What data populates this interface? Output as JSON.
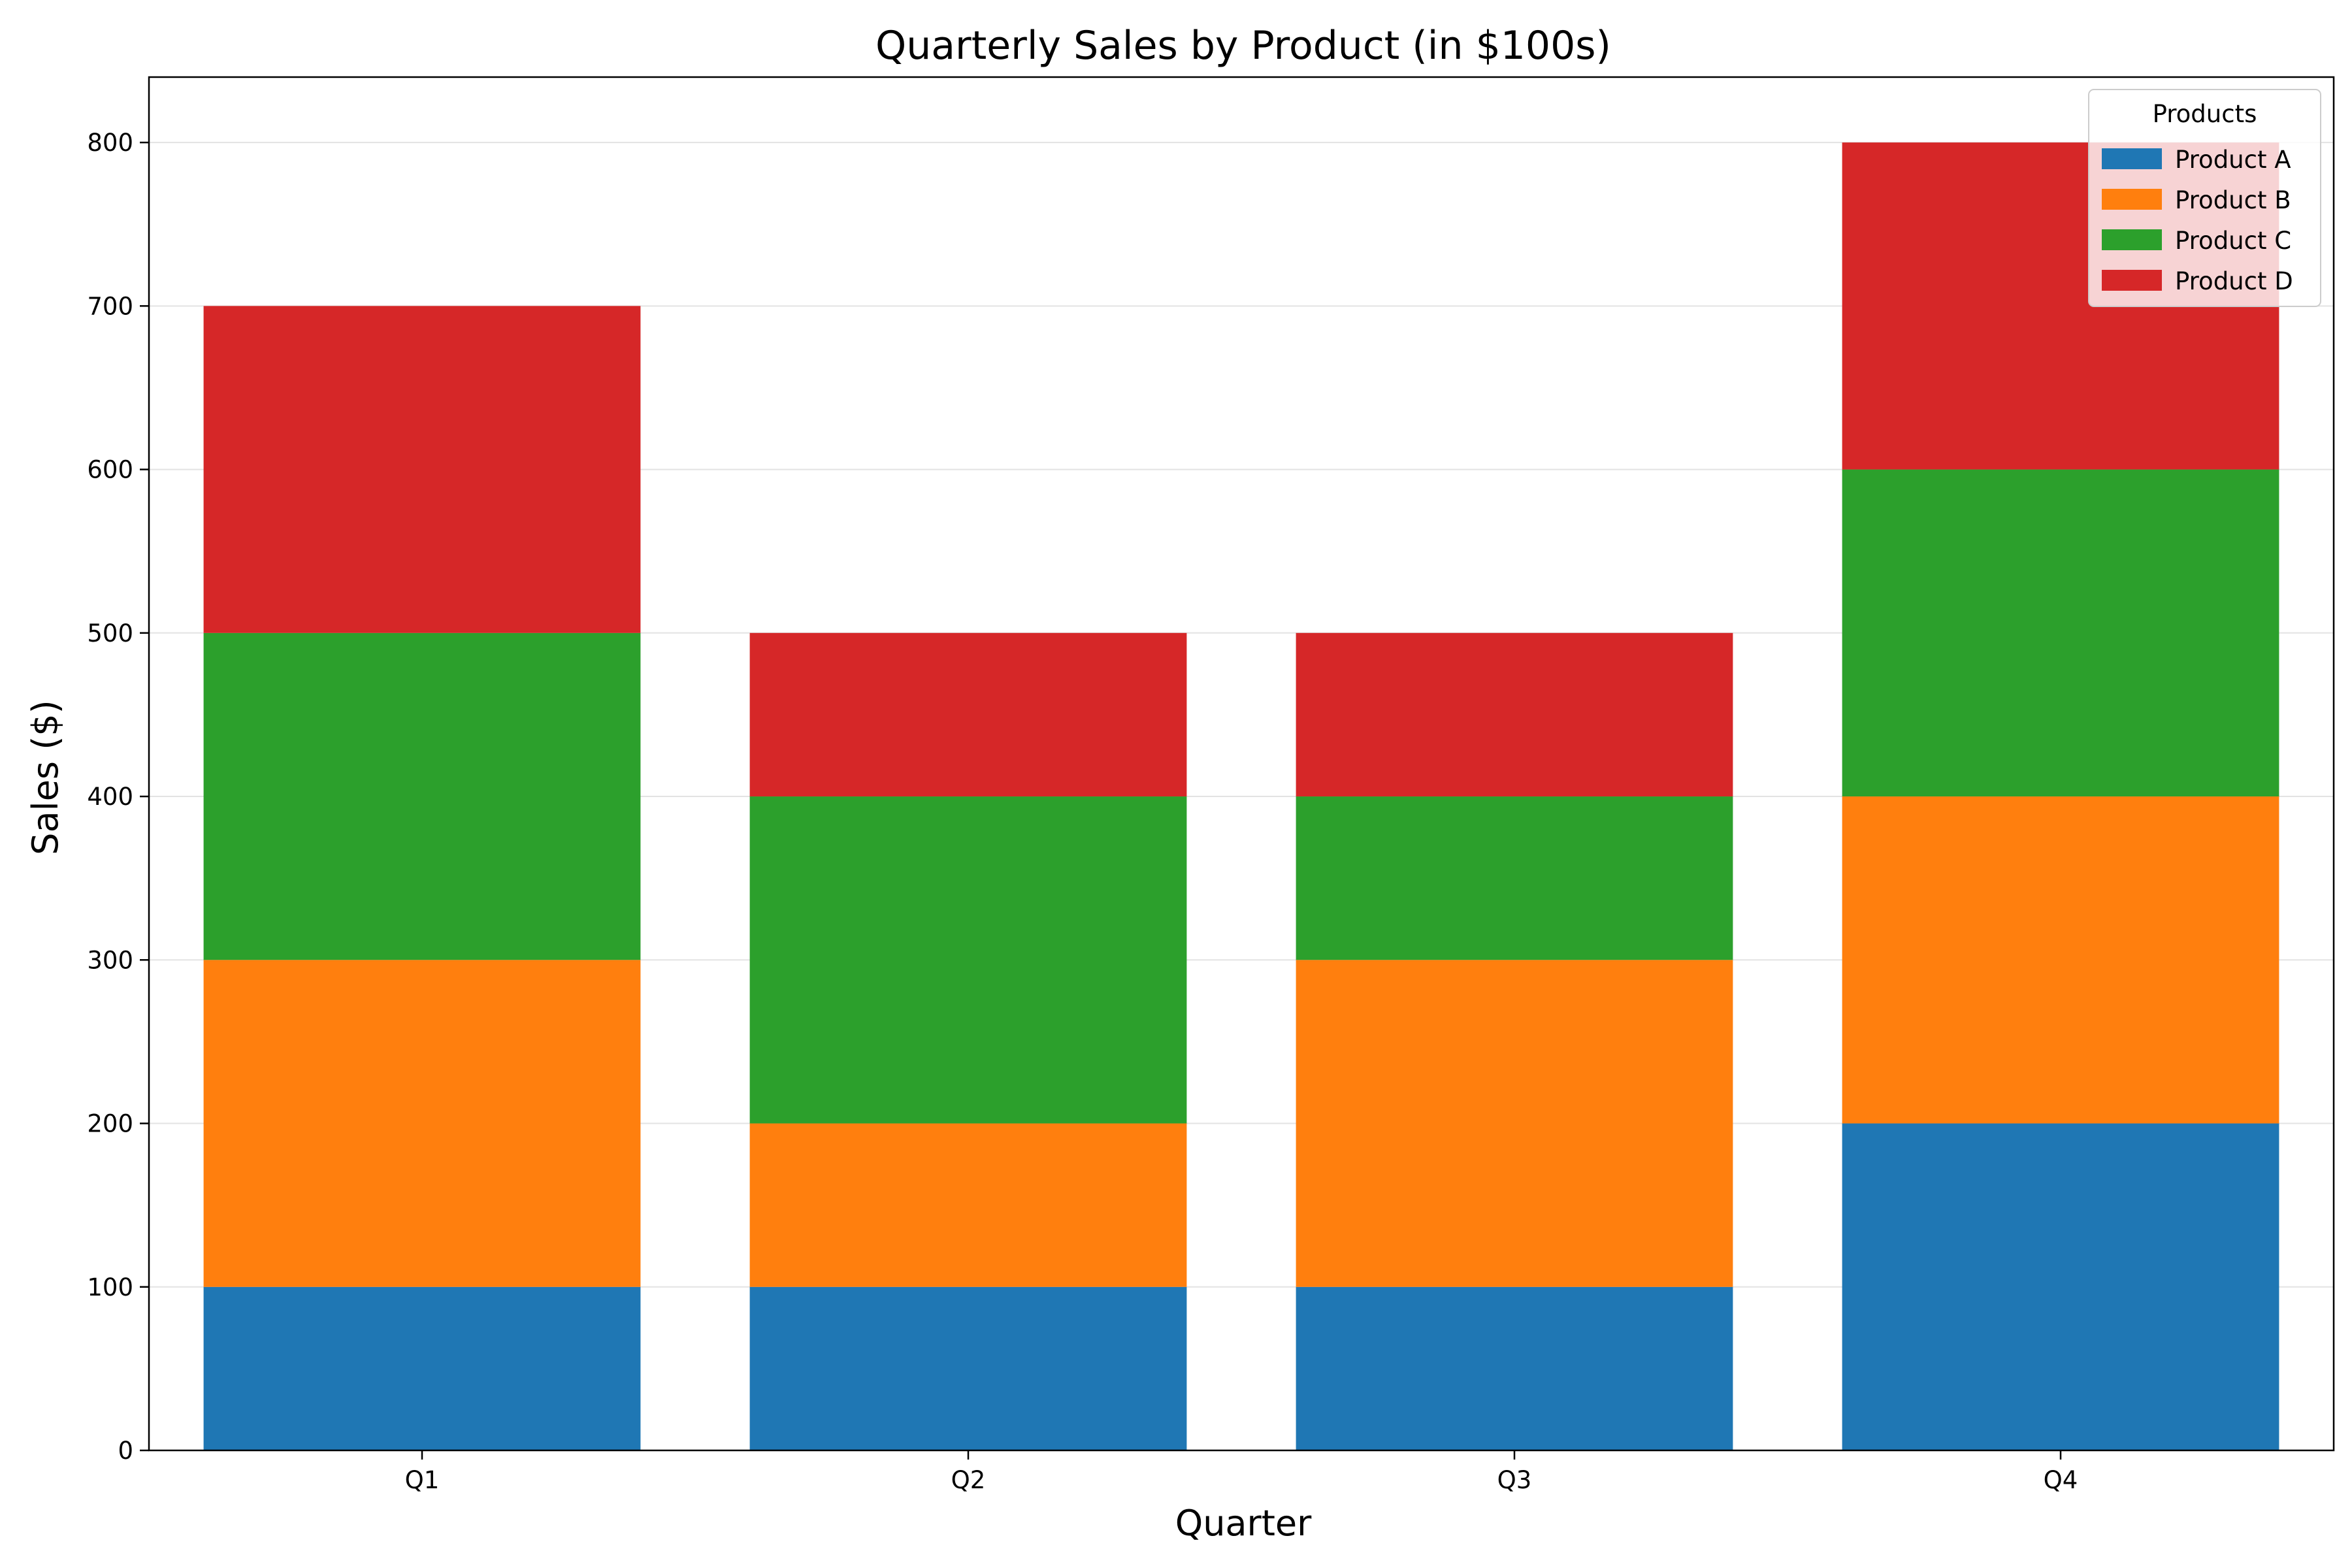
{
  "chart_data": {
    "type": "bar",
    "stacked": true,
    "title": "Quarterly Sales by Product (in $100s)",
    "xlabel": "Quarter",
    "ylabel": "Sales ($)",
    "categories": [
      "Q1",
      "Q2",
      "Q3",
      "Q4"
    ],
    "ylim": [
      0,
      840
    ],
    "yticks": [
      0,
      100,
      200,
      300,
      400,
      500,
      600,
      700,
      800
    ],
    "grid": "y",
    "legend": {
      "title": "Products",
      "placement": "top-right"
    },
    "series": [
      {
        "name": "Product A",
        "color": "#1f77b4",
        "values": [
          100,
          100,
          100,
          200
        ]
      },
      {
        "name": "Product B",
        "color": "#ff7f0e",
        "values": [
          200,
          100,
          200,
          200
        ]
      },
      {
        "name": "Product C",
        "color": "#2ca02c",
        "values": [
          200,
          200,
          100,
          200
        ]
      },
      {
        "name": "Product D",
        "color": "#d62728",
        "values": [
          200,
          100,
          100,
          200
        ]
      }
    ]
  }
}
